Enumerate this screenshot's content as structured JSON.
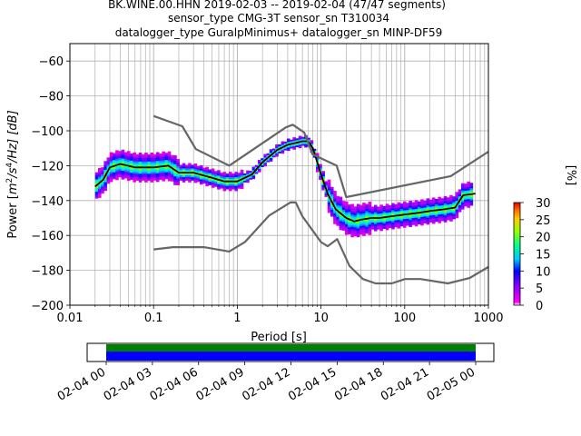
{
  "title_lines": [
    "BK.WINE.00.HHN   2019-02-03 -- 2019-02-04  (47/47 segments)",
    "sensor_type CMG-3T sensor_sn T310034",
    "datalogger_type GuralpMinimus+ datalogger_sn MINP-DF59"
  ],
  "chart_data": {
    "type": "heatmap",
    "title": "BK.WINE.00.HHN   2019-02-03 -- 2019-02-04  (47/47 segments)",
    "xlabel": "Period [s]",
    "ylabel": "Power [m^2/s^4/Hz] [dB]",
    "ylabel_parts": {
      "prefix": "Power [",
      "m": "m",
      "sq": "2",
      "slash_s": "/s",
      "four": "4",
      "rest": "/Hz] [dB]"
    },
    "x_scale": "log",
    "xlim": [
      0.01,
      1000
    ],
    "ylim": [
      -200,
      -50
    ],
    "x_ticks": [
      0.01,
      0.1,
      1,
      10,
      100,
      1000
    ],
    "x_tick_labels": [
      "0.01",
      "0.1",
      "1",
      "10",
      "100",
      "1000"
    ],
    "y_ticks": [
      -200,
      -180,
      -160,
      -140,
      -120,
      -100,
      -80,
      -60
    ],
    "y_tick_labels": [
      "−200",
      "−180",
      "−160",
      "−140",
      "−120",
      "−100",
      "−80",
      "−60"
    ],
    "grid": true,
    "colorbar": {
      "label": "[%]",
      "min": 0,
      "max": 30,
      "ticks": [
        0,
        5,
        10,
        15,
        20,
        25,
        30
      ],
      "tick_labels": [
        "0",
        "5",
        "10",
        "15",
        "20",
        "25",
        "30"
      ]
    },
    "series": [
      {
        "role": "mode",
        "color": "#000000",
        "x": [
          0.02,
          0.025,
          0.03,
          0.04,
          0.06,
          0.1,
          0.15,
          0.2,
          0.3,
          0.5,
          0.7,
          1.0,
          1.5,
          2,
          3,
          4,
          5,
          6,
          7,
          8,
          10,
          12,
          15,
          20,
          25,
          30,
          40,
          50,
          70,
          100,
          150,
          200,
          300,
          400,
          500,
          700
        ],
        "y": [
          -132,
          -128,
          -121,
          -119,
          -121,
          -121,
          -120,
          -124,
          -124,
          -127,
          -129,
          -129,
          -125,
          -118,
          -111,
          -108,
          -107,
          -106,
          -106,
          -110,
          -125,
          -136,
          -145,
          -150,
          -152,
          -151,
          -150,
          -150,
          -149,
          -148,
          -147,
          -146,
          -145,
          -144,
          -137,
          -136
        ]
      },
      {
        "role": "NHNM",
        "color": "#666666",
        "x": [
          0.1,
          0.22,
          0.32,
          0.8,
          3.8,
          4.6,
          6.3,
          7.9,
          15.4,
          20,
          354.8,
          1000
        ],
        "y": [
          -91.5,
          -97.4,
          -110.5,
          -120,
          -98,
          -96.5,
          -101,
          -113.5,
          -120,
          -138,
          -126,
          -112
        ]
      },
      {
        "role": "NLNM",
        "color": "#666666",
        "x": [
          0.1,
          0.17,
          0.4,
          0.8,
          1.24,
          2.4,
          4.3,
          5.0,
          6.0,
          10.0,
          12.0,
          15.6,
          21.9,
          31.6,
          45,
          70,
          101,
          154,
          328,
          600,
          1000
        ],
        "y": [
          -168,
          -166.7,
          -166.7,
          -169.2,
          -163.7,
          -148.6,
          -141.1,
          -141.1,
          -149.0,
          -163.8,
          -166.2,
          -162.1,
          -177.5,
          -185,
          -187.5,
          -187.5,
          -185,
          -185,
          -187.5,
          -184.4,
          -178
        ]
      }
    ]
  },
  "coverage": {
    "x_tick_labels": [
      "02-04 00",
      "02-04 03",
      "02-04 06",
      "02-04 09",
      "02-04 12",
      "02-04 15",
      "02-04 18",
      "02-04 21",
      "02-05 00"
    ],
    "bars": [
      {
        "role": "data-available",
        "color": "#0000ff"
      },
      {
        "role": "gaps-free",
        "color": "#008000"
      }
    ]
  }
}
